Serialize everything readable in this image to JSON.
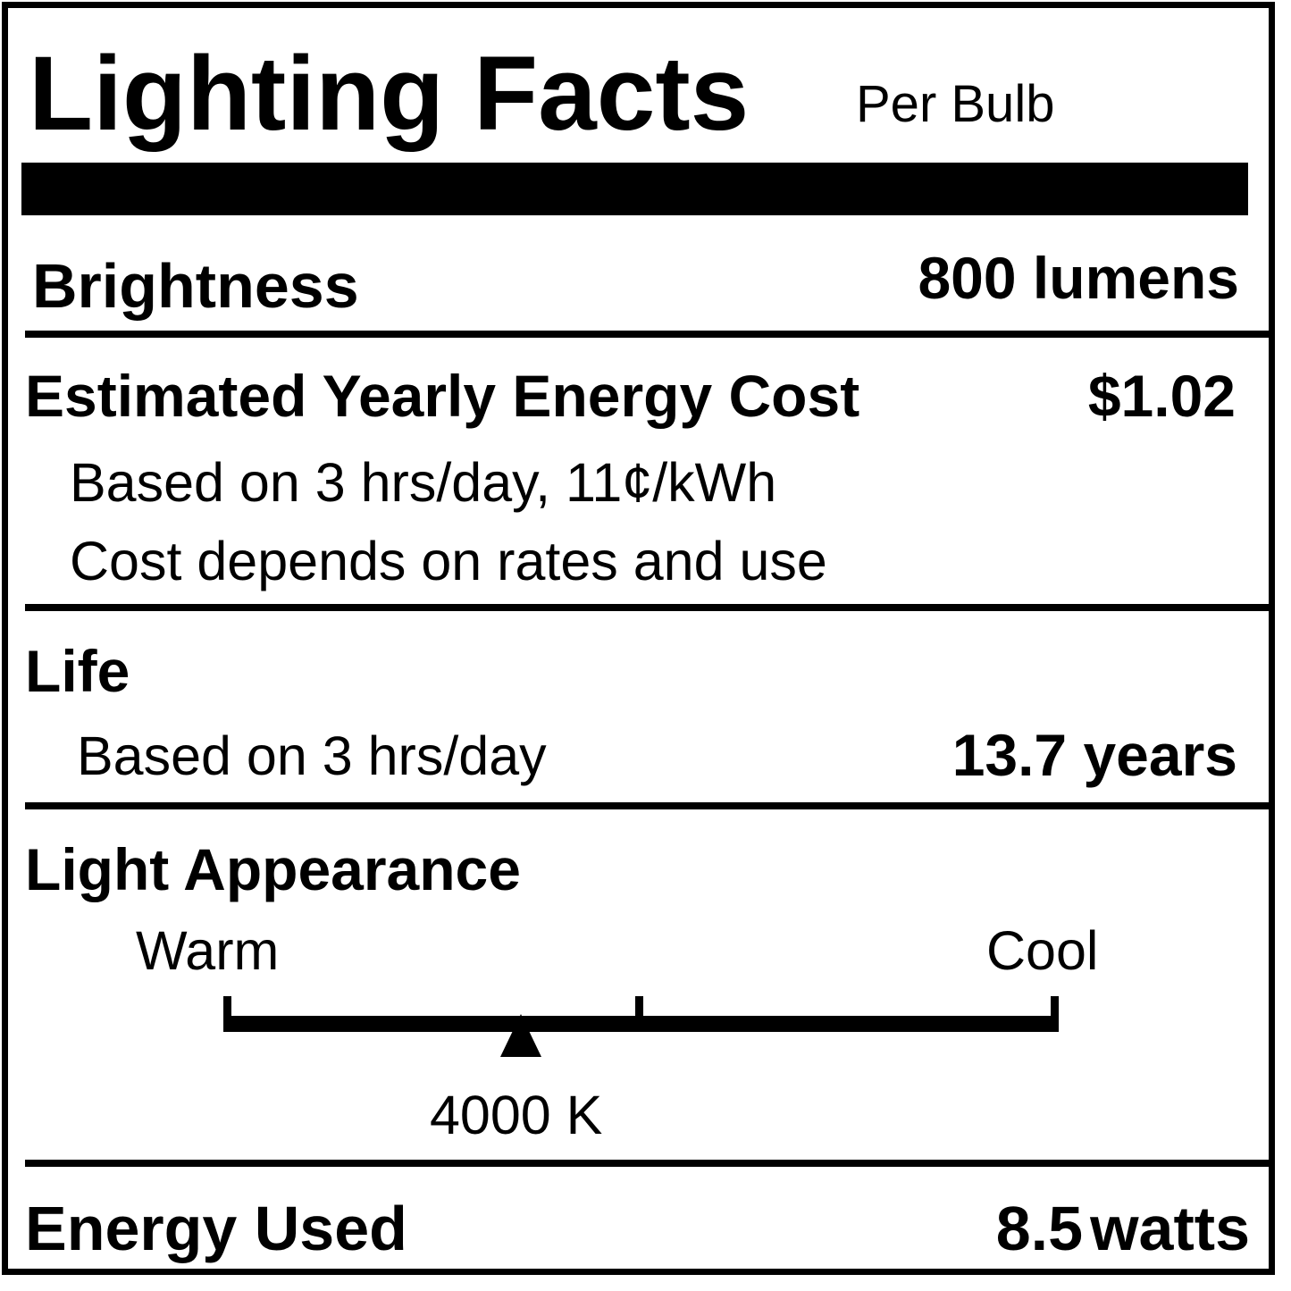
{
  "header": {
    "title": "Lighting Facts",
    "subtitle": "Per Bulb"
  },
  "brightness": {
    "label": "Brightness",
    "value": "800 lumens"
  },
  "cost": {
    "label": "Estimated Yearly Energy Cost",
    "value": "$1.02",
    "note1": "Based on 3 hrs/day, 11¢/kWh",
    "note2": "Cost depends on rates and use"
  },
  "life": {
    "label": "Life",
    "note": "Based on 3 hrs/day",
    "value": "13.7 years"
  },
  "appearance": {
    "label": "Light Appearance",
    "warm_label": "Warm",
    "cool_label": "Cool",
    "value": "4000 K",
    "marker_position": 0.356
  },
  "energy": {
    "label": "Energy Used",
    "value_number": "8.5",
    "value_unit": "watts"
  }
}
